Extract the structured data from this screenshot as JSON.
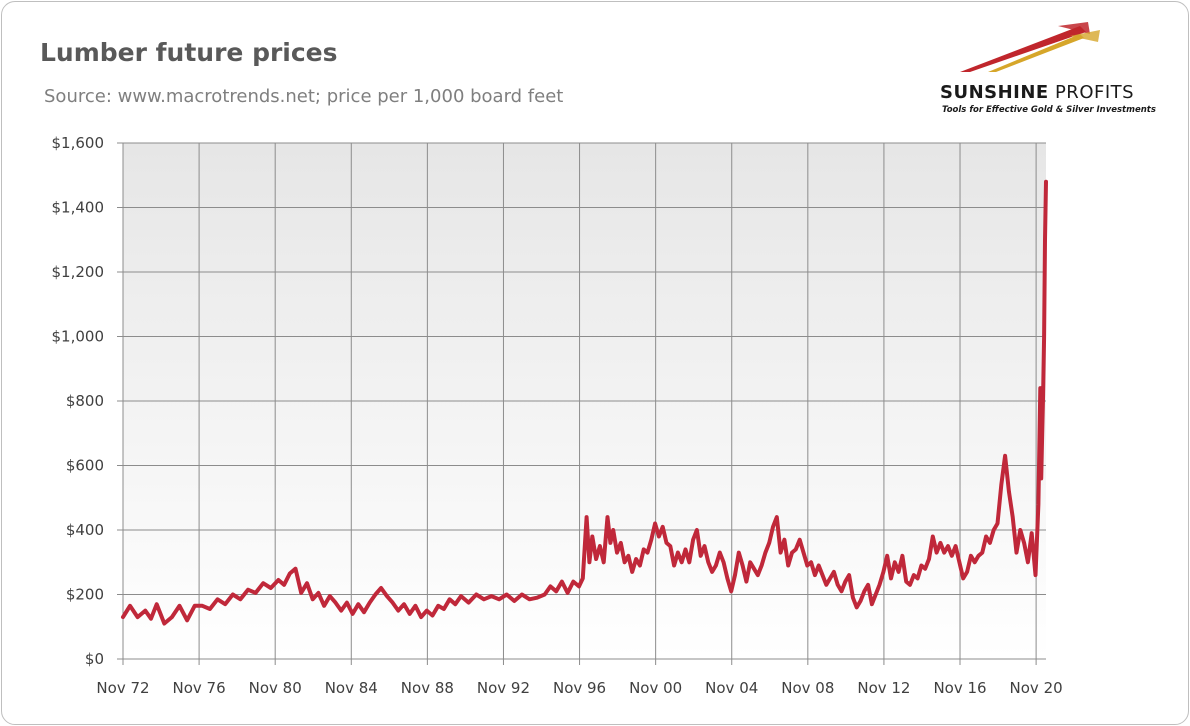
{
  "header": {
    "title": "Lumber future prices",
    "subtitle": "Source: www.macrotrends.net; price per 1,000 board feet"
  },
  "logo": {
    "name_bold": "SUNSHINE",
    "name_light": " PROFITS",
    "tagline": "Tools for Effective Gold & Silver Investments",
    "colors": {
      "accent_red": "#c0262c",
      "accent_gold": "#d6a62a",
      "text": "#1a1a1a"
    }
  },
  "chart_data": {
    "type": "line",
    "title": "Lumber future prices",
    "xlabel": "",
    "ylabel": "",
    "ylim": [
      0,
      1600
    ],
    "yticks": [
      0,
      200,
      400,
      600,
      800,
      1000,
      1200,
      1400,
      1600
    ],
    "ytick_labels": [
      "$0",
      "$200",
      "$400",
      "$600",
      "$800",
      "$1,000",
      "$1,200",
      "$1,400",
      "$1,600"
    ],
    "xlim": [
      1972.83,
      2021.35
    ],
    "xticks": [
      1972.83,
      1976.83,
      1980.83,
      1984.83,
      1988.83,
      1992.83,
      1996.83,
      2000.83,
      2004.83,
      2008.83,
      2012.83,
      2016.83,
      2020.83
    ],
    "xtick_labels": [
      "Nov 72",
      "Nov 76",
      "Nov 80",
      "Nov 84",
      "Nov 88",
      "Nov 92",
      "Nov 96",
      "Nov 00",
      "Nov 04",
      "Nov 08",
      "Nov 12",
      "Nov 16",
      "Nov 20"
    ],
    "grid": true,
    "legend": "none",
    "series": [
      {
        "color": "#c0283a",
        "points": [
          [
            1972.83,
            130
          ],
          [
            1973.2,
            165
          ],
          [
            1973.6,
            130
          ],
          [
            1974.0,
            150
          ],
          [
            1974.3,
            125
          ],
          [
            1974.6,
            170
          ],
          [
            1975.0,
            110
          ],
          [
            1975.4,
            130
          ],
          [
            1975.8,
            165
          ],
          [
            1976.2,
            120
          ],
          [
            1976.6,
            165
          ],
          [
            1977.0,
            165
          ],
          [
            1977.4,
            155
          ],
          [
            1977.8,
            185
          ],
          [
            1978.2,
            170
          ],
          [
            1978.6,
            200
          ],
          [
            1979.0,
            185
          ],
          [
            1979.4,
            215
          ],
          [
            1979.8,
            205
          ],
          [
            1980.2,
            235
          ],
          [
            1980.6,
            220
          ],
          [
            1981.0,
            245
          ],
          [
            1981.3,
            230
          ],
          [
            1981.6,
            265
          ],
          [
            1981.9,
            280
          ],
          [
            1982.2,
            205
          ],
          [
            1982.5,
            235
          ],
          [
            1982.8,
            185
          ],
          [
            1983.1,
            205
          ],
          [
            1983.4,
            165
          ],
          [
            1983.7,
            195
          ],
          [
            1984.0,
            175
          ],
          [
            1984.3,
            150
          ],
          [
            1984.6,
            175
          ],
          [
            1984.9,
            140
          ],
          [
            1985.2,
            170
          ],
          [
            1985.5,
            145
          ],
          [
            1985.8,
            175
          ],
          [
            1986.1,
            200
          ],
          [
            1986.4,
            220
          ],
          [
            1986.7,
            195
          ],
          [
            1987.0,
            175
          ],
          [
            1987.3,
            150
          ],
          [
            1987.6,
            170
          ],
          [
            1987.9,
            140
          ],
          [
            1988.2,
            165
          ],
          [
            1988.5,
            130
          ],
          [
            1988.8,
            150
          ],
          [
            1989.1,
            135
          ],
          [
            1989.4,
            165
          ],
          [
            1989.7,
            155
          ],
          [
            1990.0,
            185
          ],
          [
            1990.3,
            170
          ],
          [
            1990.6,
            195
          ],
          [
            1991.0,
            175
          ],
          [
            1991.4,
            200
          ],
          [
            1991.8,
            185
          ],
          [
            1992.2,
            195
          ],
          [
            1992.6,
            185
          ],
          [
            1993.0,
            200
          ],
          [
            1993.4,
            180
          ],
          [
            1993.8,
            200
          ],
          [
            1994.2,
            185
          ],
          [
            1994.6,
            190
          ],
          [
            1995.0,
            200
          ],
          [
            1995.3,
            225
          ],
          [
            1995.6,
            210
          ],
          [
            1995.9,
            240
          ],
          [
            1996.2,
            205
          ],
          [
            1996.5,
            240
          ],
          [
            1996.8,
            225
          ],
          [
            1997.0,
            250
          ],
          [
            1997.2,
            440
          ],
          [
            1997.35,
            300
          ],
          [
            1997.5,
            380
          ],
          [
            1997.7,
            310
          ],
          [
            1997.9,
            350
          ],
          [
            1998.1,
            300
          ],
          [
            1998.3,
            440
          ],
          [
            1998.45,
            360
          ],
          [
            1998.6,
            400
          ],
          [
            1998.8,
            330
          ],
          [
            1999.0,
            360
          ],
          [
            1999.2,
            300
          ],
          [
            1999.4,
            320
          ],
          [
            1999.6,
            270
          ],
          [
            1999.8,
            310
          ],
          [
            2000.0,
            290
          ],
          [
            2000.2,
            340
          ],
          [
            2000.4,
            330
          ],
          [
            2000.6,
            370
          ],
          [
            2000.8,
            420
          ],
          [
            2001.0,
            380
          ],
          [
            2001.2,
            410
          ],
          [
            2001.4,
            360
          ],
          [
            2001.6,
            350
          ],
          [
            2001.8,
            290
          ],
          [
            2002.0,
            330
          ],
          [
            2002.2,
            300
          ],
          [
            2002.4,
            340
          ],
          [
            2002.6,
            300
          ],
          [
            2002.8,
            370
          ],
          [
            2003.0,
            400
          ],
          [
            2003.2,
            320
          ],
          [
            2003.4,
            350
          ],
          [
            2003.6,
            300
          ],
          [
            2003.8,
            270
          ],
          [
            2004.0,
            290
          ],
          [
            2004.2,
            330
          ],
          [
            2004.4,
            300
          ],
          [
            2004.6,
            250
          ],
          [
            2004.8,
            210
          ],
          [
            2005.0,
            260
          ],
          [
            2005.2,
            330
          ],
          [
            2005.4,
            290
          ],
          [
            2005.6,
            240
          ],
          [
            2005.8,
            300
          ],
          [
            2006.0,
            280
          ],
          [
            2006.2,
            260
          ],
          [
            2006.4,
            290
          ],
          [
            2006.6,
            330
          ],
          [
            2006.8,
            360
          ],
          [
            2007.0,
            410
          ],
          [
            2007.2,
            440
          ],
          [
            2007.4,
            330
          ],
          [
            2007.6,
            370
          ],
          [
            2007.8,
            290
          ],
          [
            2008.0,
            330
          ],
          [
            2008.2,
            340
          ],
          [
            2008.4,
            370
          ],
          [
            2008.6,
            330
          ],
          [
            2008.8,
            290
          ],
          [
            2009.0,
            300
          ],
          [
            2009.2,
            260
          ],
          [
            2009.4,
            290
          ],
          [
            2009.6,
            260
          ],
          [
            2009.8,
            230
          ],
          [
            2010.0,
            250
          ],
          [
            2010.2,
            270
          ],
          [
            2010.4,
            230
          ],
          [
            2010.6,
            210
          ],
          [
            2010.8,
            240
          ],
          [
            2011.0,
            260
          ],
          [
            2011.2,
            190
          ],
          [
            2011.4,
            160
          ],
          [
            2011.6,
            180
          ],
          [
            2011.8,
            210
          ],
          [
            2012.0,
            230
          ],
          [
            2012.2,
            170
          ],
          [
            2012.4,
            200
          ],
          [
            2012.6,
            230
          ],
          [
            2012.8,
            270
          ],
          [
            2013.0,
            320
          ],
          [
            2013.2,
            250
          ],
          [
            2013.4,
            300
          ],
          [
            2013.6,
            270
          ],
          [
            2013.8,
            320
          ],
          [
            2014.0,
            240
          ],
          [
            2014.2,
            230
          ],
          [
            2014.4,
            260
          ],
          [
            2014.6,
            250
          ],
          [
            2014.8,
            290
          ],
          [
            2015.0,
            280
          ],
          [
            2015.2,
            310
          ],
          [
            2015.4,
            380
          ],
          [
            2015.6,
            330
          ],
          [
            2015.8,
            360
          ],
          [
            2016.0,
            330
          ],
          [
            2016.2,
            350
          ],
          [
            2016.4,
            320
          ],
          [
            2016.6,
            350
          ],
          [
            2016.8,
            300
          ],
          [
            2017.0,
            250
          ],
          [
            2017.2,
            270
          ],
          [
            2017.4,
            320
          ],
          [
            2017.6,
            300
          ],
          [
            2017.8,
            320
          ],
          [
            2018.0,
            330
          ],
          [
            2018.2,
            380
          ],
          [
            2018.4,
            360
          ],
          [
            2018.6,
            400
          ],
          [
            2018.8,
            420
          ],
          [
            2019.0,
            540
          ],
          [
            2019.2,
            630
          ],
          [
            2019.4,
            520
          ],
          [
            2019.6,
            440
          ],
          [
            2019.8,
            330
          ],
          [
            2020.0,
            400
          ],
          [
            2020.2,
            360
          ],
          [
            2020.4,
            300
          ],
          [
            2020.6,
            390
          ],
          [
            2020.8,
            260
          ],
          [
            2020.95,
            480
          ],
          [
            2021.05,
            840
          ],
          [
            2021.1,
            560
          ],
          [
            2021.15,
            700
          ],
          [
            2021.2,
            820
          ],
          [
            2021.25,
            1000
          ],
          [
            2021.3,
            1300
          ],
          [
            2021.35,
            1480
          ]
        ]
      }
    ]
  }
}
